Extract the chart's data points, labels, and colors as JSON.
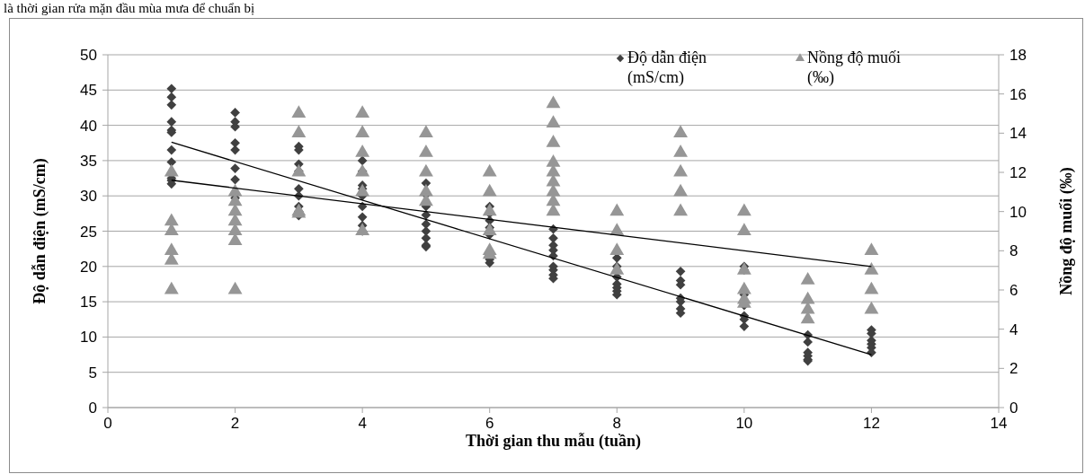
{
  "chart_data": {
    "type": "scatter",
    "xlabel": "Thời gian thu mẫu (tuần)",
    "ylabel": "Độ dẫn điện (mS/cm)",
    "y2label": "Nồng độ muối (‰)",
    "annotations": [
      "là thời gian rửa mặn đầu mùa mưa để chuẩn bị"
    ],
    "xlim": [
      0,
      14
    ],
    "xticks": [
      0,
      2,
      4,
      6,
      8,
      10,
      12,
      14
    ],
    "ylim": [
      0,
      50
    ],
    "yticks": [
      0,
      5,
      10,
      15,
      20,
      25,
      30,
      35,
      40,
      45,
      50
    ],
    "y2lim": [
      0,
      18
    ],
    "y2ticks": [
      0,
      2,
      4,
      6,
      8,
      10,
      12,
      14,
      16,
      18
    ],
    "grid": "y",
    "legend": "top right",
    "series": [
      {
        "name": "Độ dẫn điện (mS/cm)",
        "marker": "diamond",
        "color": "#404040",
        "x": [
          1,
          1,
          1,
          1,
          1,
          1,
          1,
          1,
          1,
          1,
          1,
          2,
          2,
          2,
          2,
          2,
          2,
          2,
          2,
          3,
          3,
          3,
          3,
          3,
          3,
          3,
          3,
          3,
          4,
          4,
          4,
          4,
          4,
          4,
          4,
          4,
          4,
          5,
          5,
          5,
          5,
          5,
          5,
          5,
          5,
          5,
          6,
          6,
          6,
          6,
          6,
          6,
          6,
          7,
          7,
          7,
          7,
          7,
          7,
          7,
          7,
          7,
          8,
          8,
          8,
          8,
          8,
          8,
          8,
          9,
          9,
          9,
          9,
          9,
          9,
          9,
          10,
          10,
          10,
          10,
          10,
          10,
          10,
          11,
          11,
          11,
          11,
          11,
          11,
          12,
          12,
          12,
          12,
          12,
          12
        ],
        "values": [
          45.2,
          44,
          42.9,
          40.5,
          39.3,
          39,
          36.5,
          34.8,
          32.5,
          32.2,
          31.7,
          41.8,
          40.5,
          39.8,
          37.5,
          36.5,
          33.9,
          32.3,
          29.7,
          37,
          36.5,
          34.5,
          33.5,
          31,
          30,
          28.5,
          27.8,
          27.2,
          35,
          33.5,
          31.5,
          31,
          30,
          28.5,
          27,
          25.8,
          25,
          31.8,
          30.2,
          28.5,
          27.3,
          26,
          25,
          24,
          23,
          22.8,
          28.5,
          27.5,
          26.5,
          25.5,
          24.5,
          21,
          20.5,
          25.3,
          24,
          23,
          22.3,
          21.5,
          20,
          19.5,
          18.8,
          18.3,
          21.2,
          20,
          18.5,
          17.5,
          17,
          16.5,
          16,
          19.3,
          18,
          17.4,
          15.5,
          15,
          14,
          13.4,
          20,
          19.5,
          16,
          14.5,
          13,
          12.5,
          11.5,
          10.3,
          9.3,
          7.8,
          7.3,
          6.8,
          6.6,
          11,
          10.5,
          9.5,
          9,
          8.5,
          7.8
        ]
      },
      {
        "name": "Nồng độ muối (‰)",
        "marker": "triangle",
        "color": "#969696",
        "axis": "y2",
        "x": [
          1,
          1,
          1,
          1,
          1,
          1,
          2,
          2,
          2,
          2,
          2,
          2,
          2,
          3,
          3,
          3,
          3,
          3,
          4,
          4,
          4,
          4,
          4,
          4,
          5,
          5,
          5,
          5,
          5,
          6,
          6,
          6,
          6,
          6,
          6,
          7,
          7,
          7,
          7,
          7,
          7,
          7,
          7,
          7,
          8,
          8,
          8,
          8,
          9,
          9,
          9,
          9,
          9,
          10,
          10,
          10,
          10,
          10,
          10,
          11,
          11,
          11,
          11,
          12,
          12,
          12,
          12
        ],
        "values": [
          12,
          9.5,
          9,
          8,
          7.5,
          6,
          11,
          10.5,
          10,
          9.5,
          9,
          8.5,
          6,
          15,
          14,
          12,
          10,
          9.9,
          15,
          14,
          13,
          12,
          11,
          9,
          14,
          13,
          12,
          11,
          10.5,
          12,
          11,
          10,
          9,
          8,
          7.8,
          15.5,
          14.5,
          13.5,
          12.5,
          12,
          11.5,
          11,
          10.5,
          10,
          10,
          9,
          8,
          7,
          14,
          13,
          12,
          11,
          10,
          10,
          9,
          7,
          6,
          5.5,
          5.3,
          6.5,
          5.5,
          5,
          4.5,
          8,
          7,
          6,
          5
        ]
      },
      {
        "type": "line",
        "marker": "none",
        "color": "#000000",
        "x": [
          1,
          12
        ],
        "values": [
          37.6,
          7.5
        ]
      },
      {
        "type": "line",
        "marker": "none",
        "color": "#000000",
        "axis": "y2",
        "x": [
          1,
          12
        ],
        "values": [
          11.6,
          7.2
        ]
      }
    ]
  }
}
